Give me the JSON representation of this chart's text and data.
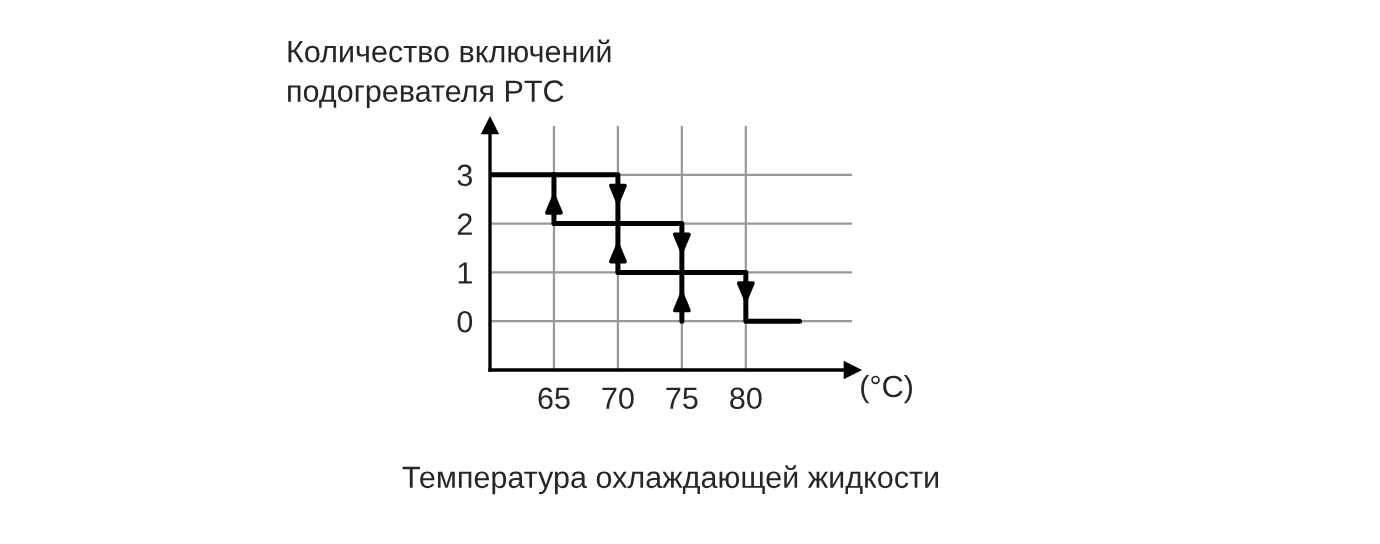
{
  "chart_data": {
    "type": "line",
    "ylabel": "Количество включений\nподогревателя PTC",
    "xlabel": "Температура охлаждающей жидкости",
    "annotations": [
      "(°C)"
    ],
    "series": [
      {
        "color": "#000000",
        "x": [
          60,
          70,
          70,
          75,
          75,
          80,
          80,
          84.2
        ],
        "values": [
          3,
          3,
          2,
          2,
          1,
          1,
          0,
          0
        ]
      },
      {
        "color": "#000000",
        "x": [
          75,
          75,
          70,
          70,
          65,
          65
        ],
        "values": [
          0,
          1,
          1,
          2,
          2,
          3
        ]
      }
    ],
    "xlim": [
      60,
      88.3
    ],
    "ylim": [
      -1,
      4
    ],
    "xticks": [
      65,
      70,
      75,
      80
    ],
    "yticks": [
      0,
      1,
      2,
      3
    ],
    "grid": true,
    "legend": false
  }
}
